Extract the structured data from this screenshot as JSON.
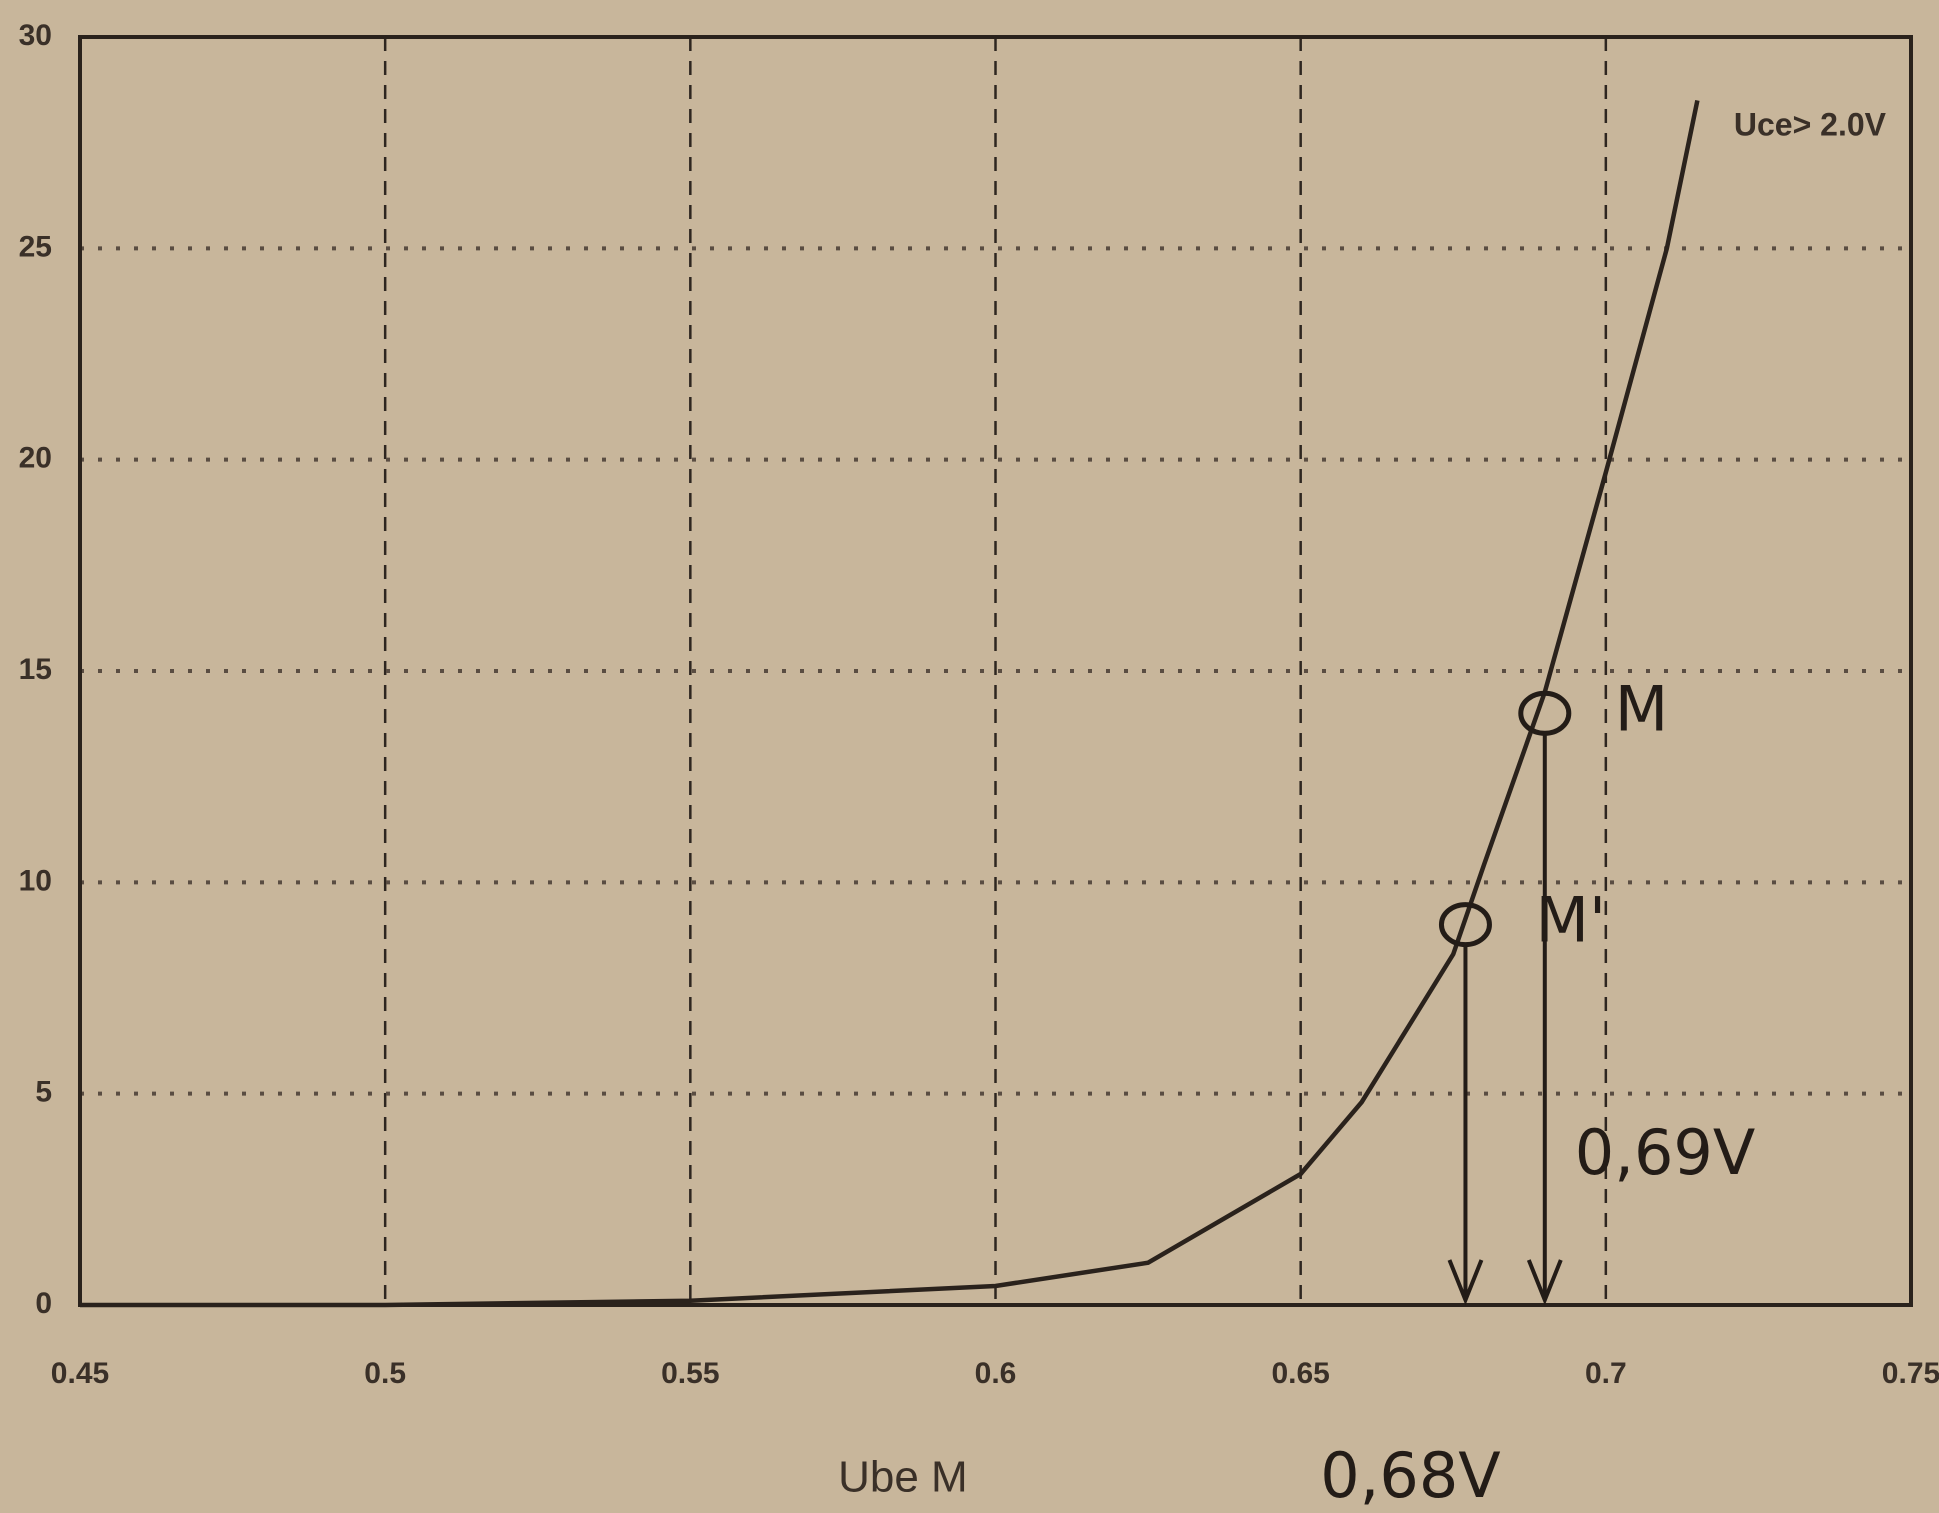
{
  "chart_data": {
    "type": "line",
    "x": [
      0.45,
      0.5,
      0.55,
      0.6,
      0.625,
      0.65,
      0.66,
      0.675,
      0.68,
      0.69,
      0.7,
      0.71,
      0.715
    ],
    "series": [
      {
        "name": "Uce> 2.0V",
        "color": "#2a221c",
        "values": [
          0,
          0,
          0.1,
          0.45,
          1.0,
          3.1,
          4.8,
          8.3,
          10.4,
          14.5,
          19.7,
          25,
          28.5
        ]
      }
    ],
    "xlabel": "Ube M",
    "xlim": [
      0.45,
      0.75
    ],
    "xticks": [
      0.45,
      0.5,
      0.55,
      0.6,
      0.65,
      0.7,
      0.75
    ],
    "ylim": [
      0,
      30
    ],
    "yticks": [
      0,
      5,
      10,
      15,
      20,
      25,
      30
    ],
    "grid": true,
    "legend": "upper right",
    "points": {
      "labels": [
        "M",
        "M'"
      ],
      "x": [
        0.69,
        0.677
      ],
      "y": [
        14,
        9
      ],
      "value_labels": [
        "0,69V",
        "0,68V"
      ]
    }
  }
}
